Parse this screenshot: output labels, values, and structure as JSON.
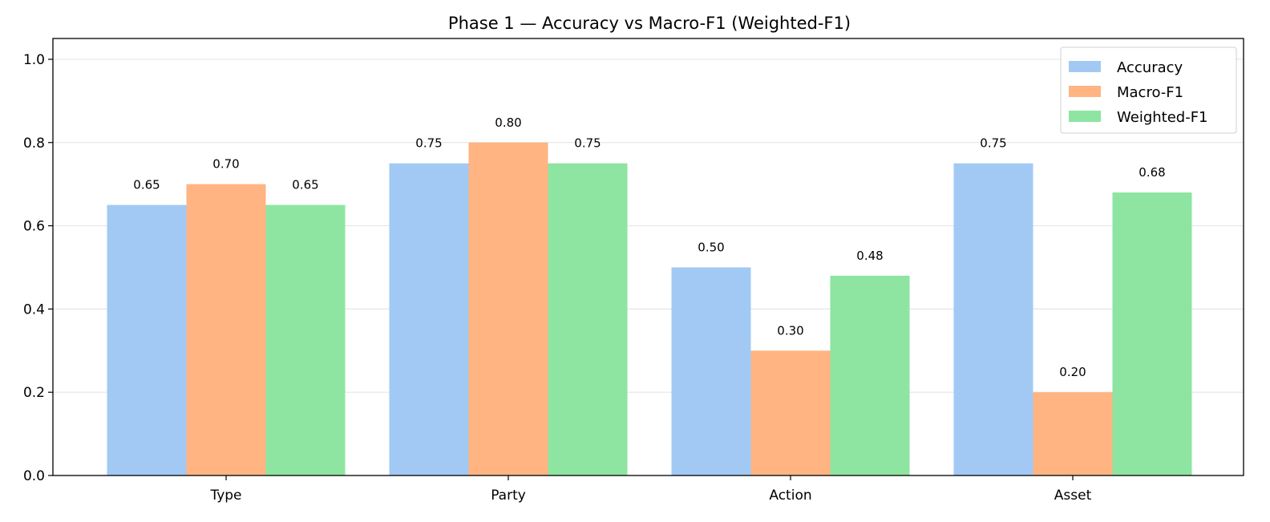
{
  "chart_data": {
    "type": "bar",
    "title": "Phase 1 — Accuracy vs Macro-F1 (Weighted-F1)",
    "xlabel": "",
    "ylabel": "",
    "categories": [
      "Type",
      "Party",
      "Action",
      "Asset"
    ],
    "series": [
      {
        "name": "Accuracy",
        "color": "#a1c9f4",
        "values": [
          0.65,
          0.75,
          0.5,
          0.75
        ],
        "labels": [
          "0.65",
          "0.75",
          "0.50",
          "0.75"
        ]
      },
      {
        "name": "Macro-F1",
        "color": "#ffb482",
        "values": [
          0.7,
          0.8,
          0.3,
          0.2
        ],
        "labels": [
          "0.70",
          "0.80",
          "0.30",
          "0.20"
        ]
      },
      {
        "name": "Weighted-F1",
        "color": "#8de5a1",
        "values": [
          0.65,
          0.75,
          0.48,
          0.68
        ],
        "labels": [
          "0.65",
          "0.75",
          "0.48",
          "0.68"
        ]
      }
    ],
    "ylim": [
      0,
      1.05
    ],
    "yticks": [
      0.0,
      0.2,
      0.4,
      0.6,
      0.8,
      1.0
    ],
    "ytick_labels": [
      "0.0",
      "0.2",
      "0.4",
      "0.6",
      "0.8",
      "1.0"
    ],
    "grid": "horizontal",
    "legend": "top-right"
  }
}
